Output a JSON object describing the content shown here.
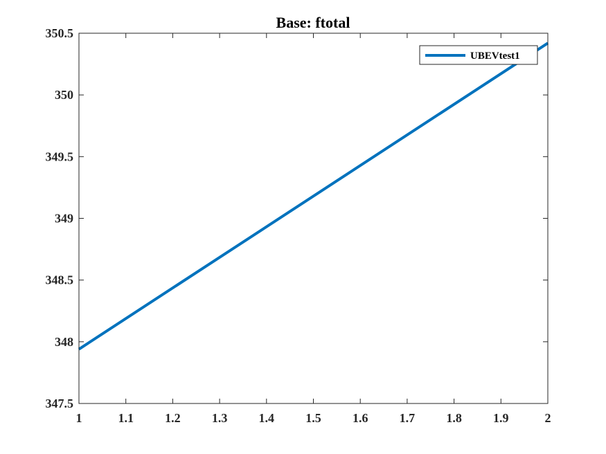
{
  "chart_data": {
    "type": "line",
    "title": "Base: ftotal",
    "xlabel": "",
    "ylabel": "",
    "xlim": [
      1,
      2
    ],
    "ylim": [
      347.5,
      350.5
    ],
    "x_ticks": [
      1,
      1.1,
      1.2,
      1.3,
      1.4,
      1.5,
      1.6,
      1.7,
      1.8,
      1.9,
      2
    ],
    "x_tick_labels": [
      "1",
      "1.1",
      "1.2",
      "1.3",
      "1.4",
      "1.5",
      "1.6",
      "1.7",
      "1.8",
      "1.9",
      "2"
    ],
    "y_ticks": [
      347.5,
      348,
      348.5,
      349,
      349.5,
      350,
      350.5
    ],
    "y_tick_labels": [
      "347.5",
      "348",
      "348.5",
      "349",
      "349.5",
      "350",
      "350.5"
    ],
    "grid": false,
    "legend_position": "top-right",
    "series": [
      {
        "name": "UBEVtest1",
        "color": "#0072BD",
        "x": [
          1,
          2
        ],
        "y": [
          347.94,
          350.42
        ]
      }
    ]
  }
}
